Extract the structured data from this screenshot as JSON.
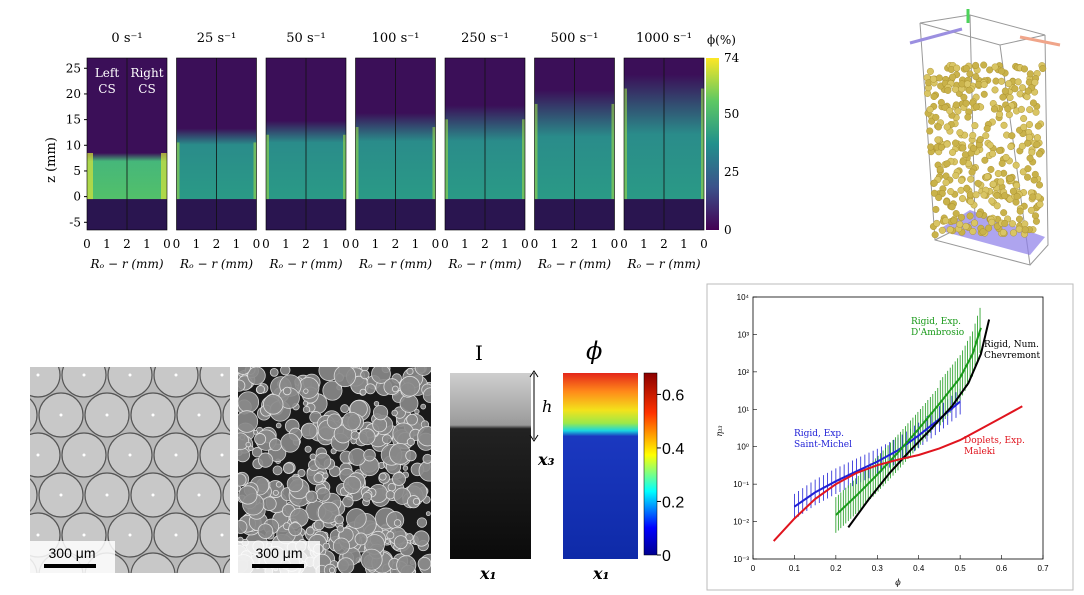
{
  "panel_a": {
    "rates": [
      "0 s⁻¹",
      "25 s⁻¹",
      "50 s⁻¹",
      "100 s⁻¹",
      "250 s⁻¹",
      "500 s⁻¹",
      "1000 s⁻¹"
    ],
    "ylabel": "z (mm)",
    "yticks": [
      "25",
      "20",
      "15",
      "10",
      "5",
      "0",
      "-5"
    ],
    "xticks": [
      "0",
      "1",
      "2",
      "1",
      "0"
    ],
    "xlabel": "Rₒ − r (mm)",
    "left_label": "Left\nCS",
    "right_label": "Right\nCS",
    "colorbar_title": "ϕ(%)",
    "colorbar_ticks": [
      "74",
      "50",
      "25",
      "0"
    ],
    "bed_top_mm": [
      8.5,
      12.5,
      14,
      15.5,
      17,
      20,
      23
    ]
  },
  "panel_c": {
    "scale_label_1": "300 μm",
    "scale_label_2": "300 μm",
    "img_title": "I",
    "phi_title": "ϕ",
    "h_label": "h",
    "x3_label": "x₃",
    "x1_label_left": "x₁",
    "x1_label_right": "x₁",
    "colorbar_ticks": [
      "0.6",
      "0.4",
      "0.2",
      "0"
    ]
  },
  "chart_data": {
    "type": "line",
    "xlabel": "ϕ",
    "ylabel": "η₃₃",
    "xlim": [
      0,
      0.7
    ],
    "ylim_log10": [
      -3,
      4
    ],
    "xticks": [
      "0",
      "0.1",
      "0.2",
      "0.3",
      "0.4",
      "0.5",
      "0.6",
      "0.7"
    ],
    "yticks": [
      "10⁻³",
      "10⁻²",
      "10⁻¹",
      "10⁰",
      "10¹",
      "10²",
      "10³",
      "10⁴"
    ],
    "series": [
      {
        "name": "Rigid, Exp. Saint-Michel",
        "color": "#1f1fd6",
        "x": [
          0.1,
          0.15,
          0.2,
          0.25,
          0.3,
          0.35,
          0.4,
          0.45,
          0.5
        ],
        "y": [
          0.025,
          0.06,
          0.12,
          0.22,
          0.4,
          0.8,
          2.0,
          5.5,
          16
        ]
      },
      {
        "name": "Rigid, Exp. D'Ambrosio",
        "color": "#1a9a1a",
        "x": [
          0.2,
          0.25,
          0.3,
          0.35,
          0.4,
          0.45,
          0.5,
          0.53,
          0.55
        ],
        "y": [
          0.015,
          0.05,
          0.18,
          0.7,
          3.0,
          14,
          70,
          300,
          1500
        ]
      },
      {
        "name": "Rigid, Num. Chevremont",
        "color": "#000000",
        "x": [
          0.23,
          0.28,
          0.33,
          0.38,
          0.43,
          0.48,
          0.52,
          0.55,
          0.57
        ],
        "y": [
          0.007,
          0.04,
          0.2,
          0.8,
          3.0,
          12,
          50,
          300,
          2500
        ]
      },
      {
        "name": "Doplets, Exp. Maleki",
        "color": "#e0141e",
        "x": [
          0.05,
          0.1,
          0.15,
          0.2,
          0.25,
          0.3,
          0.35,
          0.4,
          0.45,
          0.5,
          0.55,
          0.6,
          0.65
        ],
        "y": [
          0.003,
          0.012,
          0.04,
          0.1,
          0.2,
          0.32,
          0.45,
          0.6,
          0.9,
          1.5,
          3.0,
          6.0,
          12
        ]
      }
    ],
    "labels": {
      "saint_michel": "Rigid, Exp.\nSaint-Michel",
      "dambrosio": "Rigid, Exp.\nD'Ambrosio",
      "chevremont": "Rigid, Num.\nChevremont",
      "maleki": "Doplets, Exp.\nMaleki"
    }
  }
}
